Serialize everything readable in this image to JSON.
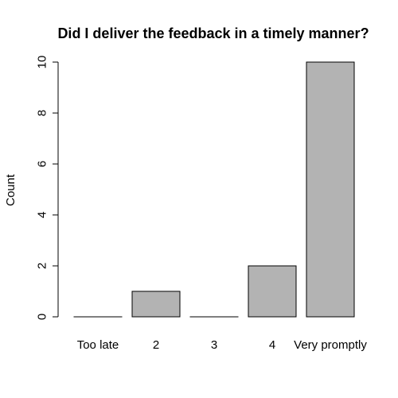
{
  "chart_data": {
    "type": "bar",
    "title": "Did I deliver the feedback in a timely manner?",
    "xlabel": "",
    "ylabel": "Count",
    "categories": [
      "Too late",
      "2",
      "3",
      "4",
      "Very promptly"
    ],
    "values": [
      0,
      1,
      0,
      2,
      10
    ],
    "ylim": [
      0,
      10
    ],
    "yticks": [
      "0",
      "2",
      "4",
      "6",
      "8",
      "10"
    ],
    "grid": false,
    "legend": "none",
    "colors": {
      "bar_fill": "#b3b3b3",
      "bar_stroke": "#000000",
      "axis": "#000000",
      "background": "#ffffff"
    }
  }
}
